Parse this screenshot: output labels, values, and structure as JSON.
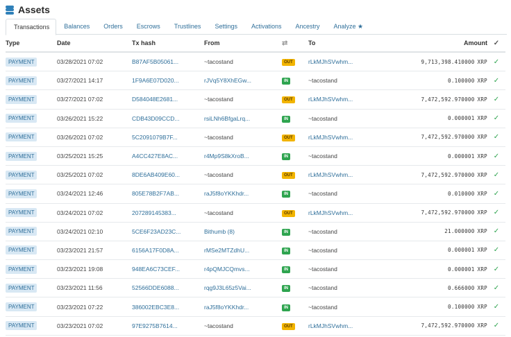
{
  "header": {
    "title": "Assets"
  },
  "tabs": [
    "Transactions",
    "Balances",
    "Orders",
    "Escrows",
    "Trustlines",
    "Settings",
    "Activations",
    "Ancestry",
    "Analyze ★"
  ],
  "columns": {
    "type": "Type",
    "date": "Date",
    "hash": "Tx hash",
    "from": "From",
    "to": "To",
    "amount": "Amount"
  },
  "rows": [
    {
      "type": "PAYMENT",
      "date": "03/28/2021 07:02",
      "hash": "B87AF5B05061...",
      "from": "~tacostand",
      "dir": "OUT",
      "to": "rLkMJhSVwhm...",
      "amount": "9,713,398.410000",
      "unit": "XRP"
    },
    {
      "type": "PAYMENT",
      "date": "03/27/2021 14:17",
      "hash": "1F9A6E07D020...",
      "from": "rJVq5Y8XhEGw...",
      "dir": "IN",
      "to": "~tacostand",
      "amount": "0.100000",
      "unit": "XRP"
    },
    {
      "type": "PAYMENT",
      "date": "03/27/2021 07:02",
      "hash": "D584048E2681...",
      "from": "~tacostand",
      "dir": "OUT",
      "to": "rLkMJhSVwhm...",
      "amount": "7,472,592.970000",
      "unit": "XRP"
    },
    {
      "type": "PAYMENT",
      "date": "03/26/2021 15:22",
      "hash": "CDB43D09CCD...",
      "from": "rsiLNh6BfgaLrq...",
      "dir": "IN",
      "to": "~tacostand",
      "amount": "0.000001",
      "unit": "XRP"
    },
    {
      "type": "PAYMENT",
      "date": "03/26/2021 07:02",
      "hash": "5C2091079B7F...",
      "from": "~tacostand",
      "dir": "OUT",
      "to": "rLkMJhSVwhm...",
      "amount": "7,472,592.970000",
      "unit": "XRP"
    },
    {
      "type": "PAYMENT",
      "date": "03/25/2021 15:25",
      "hash": "A4CC427E8AC...",
      "from": "r4Mp9S8kXroB...",
      "dir": "IN",
      "to": "~tacostand",
      "amount": "0.000001",
      "unit": "XRP"
    },
    {
      "type": "PAYMENT",
      "date": "03/25/2021 07:02",
      "hash": "8DE6AB409E60...",
      "from": "~tacostand",
      "dir": "OUT",
      "to": "rLkMJhSVwhm...",
      "amount": "7,472,592.970000",
      "unit": "XRP"
    },
    {
      "type": "PAYMENT",
      "date": "03/24/2021 12:46",
      "hash": "805E78B2F7AB...",
      "from": "raJ5f8oYKKhdr...",
      "dir": "IN",
      "to": "~tacostand",
      "amount": "0.010000",
      "unit": "XRP"
    },
    {
      "type": "PAYMENT",
      "date": "03/24/2021 07:02",
      "hash": "207289145383...",
      "from": "~tacostand",
      "dir": "OUT",
      "to": "rLkMJhSVwhm...",
      "amount": "7,472,592.970000",
      "unit": "XRP"
    },
    {
      "type": "PAYMENT",
      "date": "03/24/2021 02:10",
      "hash": "5CE6F23AD23C...",
      "from": "Bithumb (8)",
      "dir": "IN",
      "to": "~tacostand",
      "amount": "21.000000",
      "unit": "XRP"
    },
    {
      "type": "PAYMENT",
      "date": "03/23/2021 21:57",
      "hash": "6156A17F0D8A...",
      "from": "rMSe2MTZdhU...",
      "dir": "IN",
      "to": "~tacostand",
      "amount": "0.000001",
      "unit": "XRP"
    },
    {
      "type": "PAYMENT",
      "date": "03/23/2021 19:08",
      "hash": "948EA6C73CEF...",
      "from": "r4pQMJCQmvs...",
      "dir": "IN",
      "to": "~tacostand",
      "amount": "0.000001",
      "unit": "XRP"
    },
    {
      "type": "PAYMENT",
      "date": "03/23/2021 11:56",
      "hash": "52566DDE6088...",
      "from": "rqg9J3L65z5Vai...",
      "dir": "IN",
      "to": "~tacostand",
      "amount": "0.666000",
      "unit": "XRP"
    },
    {
      "type": "PAYMENT",
      "date": "03/23/2021 07:22",
      "hash": "386002EBC3E8...",
      "from": "raJ5f8oYKKhdr...",
      "dir": "IN",
      "to": "~tacostand",
      "amount": "0.100000",
      "unit": "XRP"
    },
    {
      "type": "PAYMENT",
      "date": "03/23/2021 07:02",
      "hash": "97E9275B7614...",
      "from": "~tacostand",
      "dir": "OUT",
      "to": "rLkMJhSVwhm...",
      "amount": "7,472,592.970000",
      "unit": "XRP"
    }
  ],
  "colors": {
    "link": "#2f6f9a",
    "out": "#f2b400",
    "in": "#2ea44f",
    "badge": "#d8e8f4"
  }
}
